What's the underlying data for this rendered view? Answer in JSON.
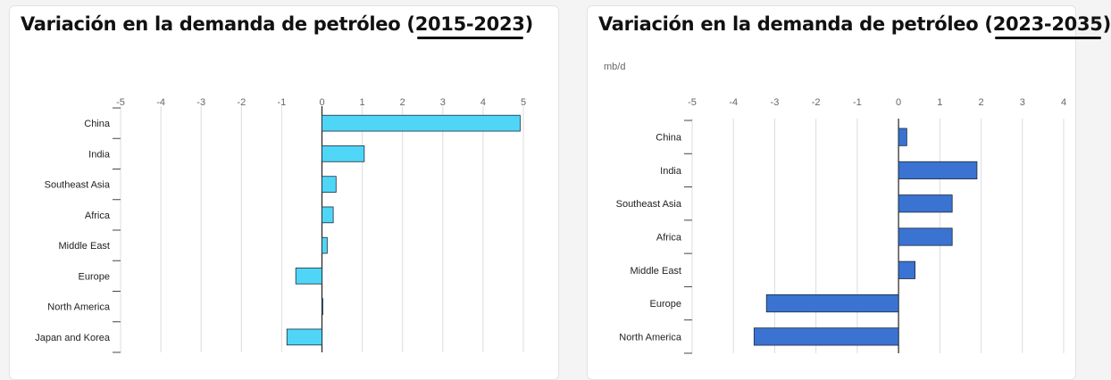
{
  "charts": [
    {
      "title_prefix": "Variación en la demanda de petróleo (",
      "title_years": "2015-2023",
      "title_suffix": ")",
      "unit": "",
      "bar_color": "#4fd6f7",
      "chart_data": {
        "type": "bar",
        "orientation": "horizontal",
        "categories": [
          "China",
          "India",
          "Southeast Asia",
          "Africa",
          "Middle East",
          "Europe",
          "North America",
          "Japan and Korea"
        ],
        "values": [
          4.92,
          1.05,
          0.35,
          0.28,
          0.13,
          -0.65,
          0.02,
          -0.87
        ],
        "xlim": [
          -5,
          5
        ],
        "xticks": [
          -5,
          -4,
          -3,
          -2,
          -1,
          0,
          1,
          2,
          3,
          4,
          5
        ],
        "grid": true
      }
    },
    {
      "title_prefix": "Variación en la demanda de petróleo (",
      "title_years": "2023-2035",
      "title_suffix": ")",
      "unit": "mb/d",
      "bar_color": "#3a73d1",
      "chart_data": {
        "type": "bar",
        "orientation": "horizontal",
        "categories": [
          "China",
          "India",
          "Southeast Asia",
          "Africa",
          "Middle East",
          "Europe",
          "North America"
        ],
        "values": [
          0.2,
          1.9,
          1.3,
          1.3,
          0.4,
          -3.2,
          -3.5
        ],
        "xlim": [
          -5,
          4
        ],
        "xticks": [
          -5,
          -4,
          -3,
          -2,
          -1,
          0,
          1,
          2,
          3,
          4
        ],
        "grid": true
      }
    }
  ]
}
